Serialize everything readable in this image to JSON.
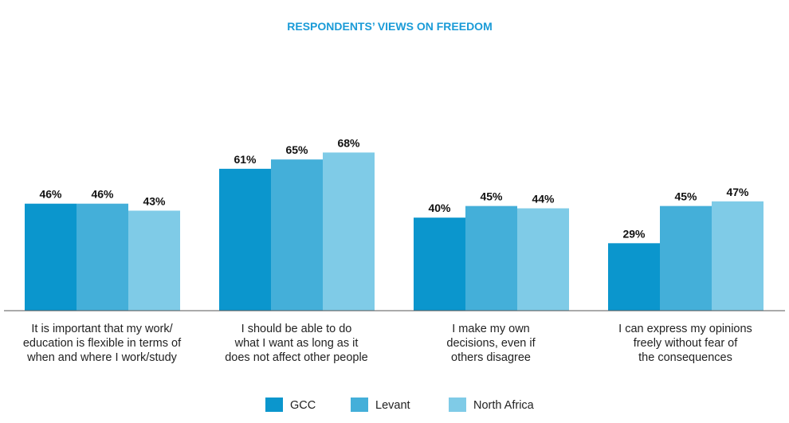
{
  "chart_data": {
    "type": "bar",
    "title": "RESPONDENTS’ VIEWS ON FREEDOM",
    "title_color": "#1a9bd7",
    "categories": [
      [
        "It is important that my work/",
        "education is flexible in terms of",
        "when and where I work/study"
      ],
      [
        "I should be able to do",
        "what I want as long as it",
        "does not affect other people"
      ],
      [
        "I make my own",
        "decisions, even if",
        "others disagree"
      ],
      [
        "I can express my opinions",
        "freely without fear of",
        "the consequences"
      ]
    ],
    "series": [
      {
        "name": "GCC",
        "color": "#0b96cd",
        "values": [
          46,
          61,
          40,
          29
        ]
      },
      {
        "name": "Levant",
        "color": "#44afd9",
        "values": [
          46,
          65,
          45,
          45
        ]
      },
      {
        "name": "North Africa",
        "color": "#7fcbe7",
        "values": [
          43,
          68,
          44,
          47
        ]
      }
    ],
    "value_suffix": "%",
    "ylim": [
      0,
      100
    ],
    "grid": false,
    "legend_position": "bottom-center",
    "axis_color": "#555555"
  }
}
